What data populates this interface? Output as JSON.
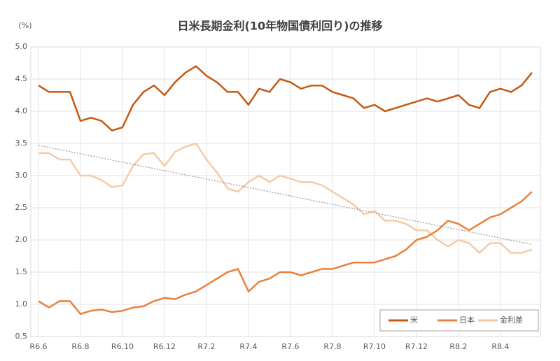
{
  "chart_data": {
    "type": "line",
    "title": "日米長期金利(10年物国債利回り)の推移",
    "y_label": "(%)",
    "categories": [
      "R6.6",
      null,
      null,
      null,
      "R6.8",
      null,
      null,
      null,
      "R6.10",
      null,
      null,
      null,
      "R6.12",
      null,
      null,
      null,
      "R7.2",
      null,
      null,
      null,
      "R7.4",
      null,
      null,
      null,
      "R7.6",
      null,
      null,
      null,
      "R7.8",
      null,
      null,
      null,
      "R7.10",
      null,
      null,
      null,
      "R7.12",
      null,
      null,
      null,
      "R8.2",
      null,
      null,
      null,
      "R8.4",
      null,
      null,
      null
    ],
    "series": [
      {
        "name": "米",
        "color": "#c55a11",
        "values": [
          4.4,
          4.3,
          4.3,
          4.3,
          3.85,
          3.9,
          3.85,
          3.7,
          3.75,
          4.1,
          4.3,
          4.4,
          4.25,
          4.45,
          4.6,
          4.7,
          4.55,
          4.45,
          4.3,
          4.3,
          4.1,
          4.35,
          4.3,
          4.5,
          4.45,
          4.35,
          4.4,
          4.4,
          4.3,
          4.25,
          4.2,
          4.05,
          4.1,
          4.0,
          4.05,
          4.1,
          4.15,
          4.2,
          4.15,
          4.2,
          4.25,
          4.1,
          4.05,
          4.3,
          4.35,
          4.3,
          4.4,
          4.6
        ]
      },
      {
        "name": "日本",
        "color": "#e8823e",
        "values": [
          1.05,
          0.95,
          1.05,
          1.05,
          0.85,
          0.9,
          0.92,
          0.88,
          0.9,
          0.95,
          0.97,
          1.05,
          1.1,
          1.08,
          1.15,
          1.2,
          1.3,
          1.4,
          1.5,
          1.55,
          1.2,
          1.35,
          1.4,
          1.5,
          1.5,
          1.45,
          1.5,
          1.55,
          1.55,
          1.6,
          1.65,
          1.65,
          1.65,
          1.7,
          1.75,
          1.85,
          2.0,
          2.05,
          2.15,
          2.3,
          2.25,
          2.15,
          2.25,
          2.35,
          2.4,
          2.5,
          2.6,
          2.75
        ]
      },
      {
        "name": "金利差",
        "color": "#f5cba7",
        "values": [
          3.35,
          3.35,
          3.25,
          3.25,
          3.0,
          3.0,
          2.93,
          2.82,
          2.85,
          3.15,
          3.33,
          3.35,
          3.15,
          3.37,
          3.45,
          3.5,
          3.25,
          3.05,
          2.8,
          2.75,
          2.9,
          3.0,
          2.9,
          3.0,
          2.95,
          2.9,
          2.9,
          2.85,
          2.75,
          2.65,
          2.55,
          2.4,
          2.45,
          2.3,
          2.3,
          2.25,
          2.15,
          2.15,
          2.0,
          1.9,
          2.0,
          1.95,
          1.8,
          1.95,
          1.95,
          1.8,
          1.8,
          1.85
        ]
      }
    ],
    "trendline": {
      "start": 3.47,
      "end": 1.93,
      "color": "#999999"
    },
    "ylim": [
      0.5,
      5
    ],
    "yticks": [
      0.5,
      {
        "value": 1,
        "label": "1.0"
      },
      1.5,
      {
        "value": 2,
        "label": "2.0"
      },
      2.5,
      {
        "value": 3,
        "label": "3.0"
      },
      3.5,
      {
        "value": 4,
        "label": "4.0"
      },
      4.5,
      {
        "value": 5,
        "label": "5.0"
      }
    ],
    "grid": true,
    "legend": "bottom-right"
  }
}
